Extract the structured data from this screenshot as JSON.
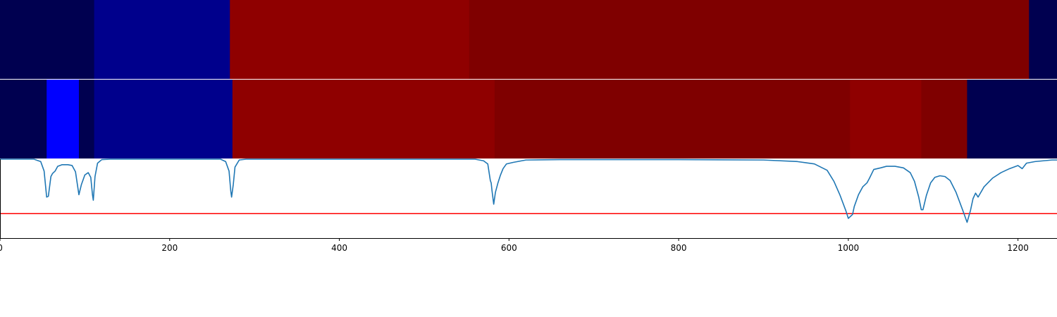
{
  "chart_data": {
    "type": "heatmap",
    "title": "",
    "xlabel": "",
    "ylabel": "",
    "xlim": [
      0,
      1246
    ],
    "grid": false,
    "colors": {
      "blue_dark": "#000050",
      "blue_mid": "#00008c",
      "blue_bright": "#0000ff",
      "red": "#8f0000",
      "red_dark": "#7f0000",
      "line": "#1f77b4",
      "threshold": "#ff0000",
      "separator": "#ffffff"
    },
    "heatmap_rows": [
      {
        "segments": [
          {
            "start": 0,
            "end": 111,
            "color": "blue_dark"
          },
          {
            "start": 111,
            "end": 271,
            "color": "blue_mid"
          },
          {
            "start": 271,
            "end": 553,
            "color": "red"
          },
          {
            "start": 553,
            "end": 1213,
            "color": "red_dark"
          },
          {
            "start": 1213,
            "end": 1246,
            "color": "blue_dark"
          }
        ]
      },
      {
        "segments": [
          {
            "start": 0,
            "end": 55,
            "color": "blue_dark"
          },
          {
            "start": 55,
            "end": 93,
            "color": "blue_bright"
          },
          {
            "start": 93,
            "end": 111,
            "color": "blue_dark"
          },
          {
            "start": 111,
            "end": 274,
            "color": "blue_mid"
          },
          {
            "start": 274,
            "end": 583,
            "color": "red"
          },
          {
            "start": 583,
            "end": 1002,
            "color": "red_dark"
          },
          {
            "start": 1002,
            "end": 1086,
            "color": "red"
          },
          {
            "start": 1086,
            "end": 1140,
            "color": "red_dark"
          },
          {
            "start": 1140,
            "end": 1246,
            "color": "blue_dark"
          }
        ]
      }
    ],
    "line_series": {
      "ylim": [
        0,
        1
      ],
      "threshold": 0.31,
      "points": [
        [
          0,
          1.0
        ],
        [
          40,
          1.0
        ],
        [
          48,
          0.97
        ],
        [
          52,
          0.85
        ],
        [
          55,
          0.52
        ],
        [
          57,
          0.53
        ],
        [
          60,
          0.78
        ],
        [
          62,
          0.82
        ],
        [
          65,
          0.85
        ],
        [
          68,
          0.91
        ],
        [
          73,
          0.93
        ],
        [
          80,
          0.93
        ],
        [
          85,
          0.92
        ],
        [
          89,
          0.84
        ],
        [
          93,
          0.55
        ],
        [
          96,
          0.68
        ],
        [
          100,
          0.8
        ],
        [
          104,
          0.83
        ],
        [
          107,
          0.77
        ],
        [
          109,
          0.55
        ],
        [
          110,
          0.48
        ],
        [
          112,
          0.78
        ],
        [
          115,
          0.95
        ],
        [
          120,
          0.995
        ],
        [
          130,
          1.0
        ],
        [
          260,
          1.0
        ],
        [
          266,
          0.97
        ],
        [
          270,
          0.85
        ],
        [
          272,
          0.6
        ],
        [
          273,
          0.52
        ],
        [
          275,
          0.68
        ],
        [
          277,
          0.9
        ],
        [
          282,
          0.99
        ],
        [
          290,
          1.0
        ],
        [
          560,
          1.0
        ],
        [
          570,
          0.98
        ],
        [
          575,
          0.94
        ],
        [
          578,
          0.73
        ],
        [
          579,
          0.7
        ],
        [
          580,
          0.6
        ],
        [
          582,
          0.43
        ],
        [
          584,
          0.58
        ],
        [
          587,
          0.7
        ],
        [
          590,
          0.8
        ],
        [
          593,
          0.88
        ],
        [
          597,
          0.94
        ],
        [
          605,
          0.96
        ],
        [
          610,
          0.97
        ],
        [
          620,
          0.99
        ],
        [
          660,
          0.995
        ],
        [
          800,
          0.995
        ],
        [
          900,
          0.99
        ],
        [
          940,
          0.97
        ],
        [
          960,
          0.94
        ],
        [
          975,
          0.86
        ],
        [
          983,
          0.72
        ],
        [
          990,
          0.55
        ],
        [
          997,
          0.35
        ],
        [
          1000,
          0.25
        ],
        [
          1005,
          0.3
        ],
        [
          1007,
          0.4
        ],
        [
          1012,
          0.55
        ],
        [
          1017,
          0.65
        ],
        [
          1022,
          0.7
        ],
        [
          1025,
          0.76
        ],
        [
          1030,
          0.87
        ],
        [
          1038,
          0.89
        ],
        [
          1045,
          0.91
        ],
        [
          1055,
          0.91
        ],
        [
          1065,
          0.89
        ],
        [
          1073,
          0.83
        ],
        [
          1078,
          0.72
        ],
        [
          1083,
          0.52
        ],
        [
          1086,
          0.36
        ],
        [
          1088,
          0.36
        ],
        [
          1092,
          0.54
        ],
        [
          1097,
          0.7
        ],
        [
          1102,
          0.77
        ],
        [
          1108,
          0.79
        ],
        [
          1114,
          0.78
        ],
        [
          1120,
          0.73
        ],
        [
          1127,
          0.58
        ],
        [
          1135,
          0.35
        ],
        [
          1140,
          0.2
        ],
        [
          1144,
          0.35
        ],
        [
          1147,
          0.5
        ],
        [
          1150,
          0.57
        ],
        [
          1153,
          0.52
        ],
        [
          1160,
          0.65
        ],
        [
          1170,
          0.76
        ],
        [
          1180,
          0.83
        ],
        [
          1190,
          0.88
        ],
        [
          1200,
          0.92
        ],
        [
          1205,
          0.88
        ],
        [
          1210,
          0.95
        ],
        [
          1220,
          0.97
        ],
        [
          1230,
          0.98
        ],
        [
          1240,
          0.99
        ],
        [
          1246,
          0.99
        ]
      ]
    },
    "xticks": [
      {
        "value": 0,
        "label": "0"
      },
      {
        "value": 200,
        "label": "200"
      },
      {
        "value": 400,
        "label": "400"
      },
      {
        "value": 600,
        "label": "600"
      },
      {
        "value": 800,
        "label": "800"
      },
      {
        "value": 1000,
        "label": "1000"
      },
      {
        "value": 1200,
        "label": "1200"
      }
    ]
  }
}
